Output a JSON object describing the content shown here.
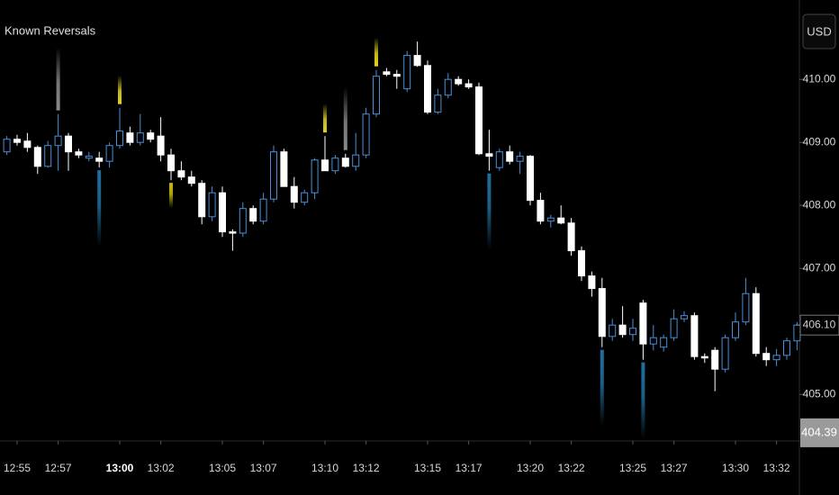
{
  "chart_data": {
    "type": "candlestick",
    "title": "Known Reversals",
    "currency": "USD",
    "up_color": "#4a8fd8",
    "down_color": "#ffffff",
    "open": [
      408.85,
      409.05,
      409.02,
      408.92,
      408.62,
      408.95,
      409.1,
      408.85,
      408.75,
      408.75,
      408.7,
      408.95,
      409.15,
      409.0,
      409.15,
      409.1,
      408.8,
      408.55,
      408.45,
      408.35,
      407.82,
      408.2,
      407.58,
      407.56,
      407.95,
      407.75,
      408.1,
      408.85,
      408.3,
      408.05,
      408.2,
      408.72,
      408.55,
      408.75,
      408.62,
      408.8,
      409.45,
      410.12,
      410.08,
      409.85,
      410.38,
      410.22,
      409.48,
      409.75,
      410.0,
      409.93,
      409.88,
      408.82,
      408.6,
      408.85,
      408.7,
      408.78,
      408.08,
      407.75,
      407.8,
      407.72,
      407.28,
      406.88,
      406.68,
      405.92,
      406.1,
      405.95,
      406.45,
      405.8,
      405.75,
      405.9,
      406.2,
      406.25,
      405.6,
      405.7,
      405.4,
      405.9,
      406.15,
      406.6,
      405.65,
      405.55,
      405.62,
      405.85
    ],
    "high": [
      409.1,
      409.12,
      409.15,
      408.95,
      409.02,
      409.45,
      409.15,
      408.9,
      408.85,
      408.85,
      409.0,
      409.55,
      409.25,
      409.45,
      409.2,
      409.4,
      408.9,
      408.7,
      408.55,
      408.4,
      408.3,
      408.3,
      407.62,
      408.05,
      408.0,
      408.2,
      408.95,
      408.9,
      408.45,
      408.25,
      408.75,
      409.1,
      408.8,
      408.82,
      409.15,
      409.55,
      410.15,
      410.18,
      410.15,
      410.45,
      410.6,
      410.3,
      409.85,
      410.1,
      410.05,
      410.0,
      409.95,
      409.2,
      408.9,
      408.95,
      408.85,
      408.8,
      408.2,
      407.85,
      408.0,
      407.8,
      407.35,
      406.95,
      406.85,
      406.2,
      406.4,
      406.2,
      406.5,
      406.1,
      405.95,
      406.35,
      406.32,
      406.3,
      405.65,
      405.75,
      405.95,
      406.3,
      406.85,
      406.7,
      405.75,
      405.72,
      405.9,
      406.15
    ],
    "low": [
      408.8,
      408.95,
      408.85,
      408.5,
      408.6,
      408.55,
      408.55,
      408.75,
      408.7,
      408.6,
      408.6,
      408.9,
      408.95,
      408.95,
      409.0,
      408.7,
      408.4,
      408.4,
      408.3,
      407.7,
      407.75,
      407.5,
      407.28,
      407.5,
      407.7,
      407.7,
      408.05,
      408.3,
      407.95,
      408.0,
      408.1,
      408.55,
      408.5,
      408.6,
      408.55,
      408.75,
      409.4,
      410.05,
      409.85,
      409.8,
      410.2,
      409.45,
      409.45,
      409.7,
      409.9,
      409.85,
      408.8,
      408.55,
      408.55,
      408.65,
      408.5,
      408.0,
      407.7,
      407.65,
      407.7,
      407.2,
      406.8,
      406.55,
      405.75,
      405.85,
      405.9,
      405.85,
      405.55,
      405.7,
      405.68,
      405.85,
      406.15,
      405.55,
      405.5,
      405.05,
      405.35,
      405.85,
      406.1,
      405.6,
      405.45,
      405.45,
      405.55,
      405.7
    ],
    "close": [
      409.05,
      409.0,
      408.92,
      408.62,
      408.95,
      409.1,
      408.85,
      408.8,
      408.78,
      408.7,
      408.95,
      409.18,
      409.0,
      409.15,
      409.05,
      408.8,
      408.55,
      408.45,
      408.35,
      407.82,
      408.2,
      407.58,
      407.56,
      407.95,
      407.75,
      408.1,
      408.85,
      408.3,
      408.05,
      408.2,
      408.72,
      408.55,
      408.75,
      408.62,
      408.8,
      409.45,
      410.05,
      410.08,
      410.05,
      410.38,
      410.22,
      409.48,
      409.75,
      410.0,
      409.93,
      409.88,
      408.82,
      408.78,
      408.85,
      408.7,
      408.78,
      408.08,
      407.75,
      407.8,
      407.72,
      407.28,
      406.88,
      406.68,
      405.92,
      406.1,
      405.95,
      406.05,
      405.8,
      405.9,
      405.9,
      406.2,
      406.25,
      405.6,
      405.58,
      405.4,
      405.9,
      406.15,
      406.6,
      405.65,
      405.55,
      405.62,
      405.85,
      406.1
    ],
    "reversals": [
      {
        "candle": 5,
        "side": "high",
        "color": "#8a8a8a"
      },
      {
        "candle": 9,
        "side": "low",
        "color": "#1f6f9e"
      },
      {
        "candle": 11,
        "side": "high",
        "color": "#e6d21a"
      },
      {
        "candle": 16,
        "side": "low",
        "color": "#c9b914"
      },
      {
        "candle": 31,
        "side": "high",
        "color": "#e6d21a"
      },
      {
        "candle": 33,
        "side": "high",
        "color": "#8a8a8a"
      },
      {
        "candle": 36,
        "side": "high",
        "color": "#e6d21a"
      },
      {
        "candle": 47,
        "side": "low",
        "color": "#1f6f9e"
      },
      {
        "candle": 58,
        "side": "low",
        "color": "#1f6f9e"
      },
      {
        "candle": 62,
        "side": "low",
        "color": "#1f6f9e"
      }
    ],
    "ylim": [
      404.26,
      411.26
    ],
    "yticks": [
      {
        "value": 405,
        "label": "405.00"
      },
      {
        "value": 406,
        "label": "406.00"
      },
      {
        "value": 407,
        "label": "407.00"
      },
      {
        "value": 408,
        "label": "408.00"
      },
      {
        "value": 409,
        "label": "409.00"
      },
      {
        "value": 410,
        "label": "410.00"
      }
    ],
    "xticks": [
      "12:55",
      "12:57",
      "13:00",
      "13:02",
      "13:05",
      "13:07",
      "13:10",
      "13:12",
      "13:15",
      "13:17",
      "13:20",
      "13:22",
      "13:25",
      "13:27",
      "13:30",
      "13:32"
    ],
    "last_price": {
      "value": 406.1,
      "label": "406.10"
    },
    "price_tag": {
      "value": 404.39,
      "label": "404.39"
    }
  }
}
